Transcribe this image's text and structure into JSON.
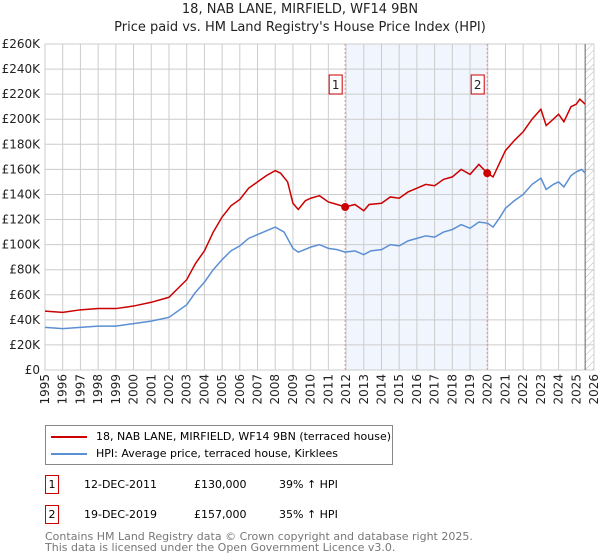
{
  "header": {
    "title": "18, NAB LANE, MIRFIELD, WF14 9BN",
    "subtitle": "Price paid vs. HM Land Registry's House Price Index (HPI)"
  },
  "chart_data": {
    "type": "line",
    "title": "18, NAB LANE, MIRFIELD, WF14 9BN",
    "subtitle": "Price paid vs. HM Land Registry's House Price Index (HPI)",
    "xlim": [
      1995,
      2026
    ],
    "ylim": [
      0,
      260000
    ],
    "x_ticks": [
      "1995",
      "1996",
      "1997",
      "1998",
      "1999",
      "2000",
      "2001",
      "2002",
      "2003",
      "2004",
      "2005",
      "2006",
      "2007",
      "2008",
      "2009",
      "2010",
      "2011",
      "2012",
      "2013",
      "2014",
      "2015",
      "2016",
      "2017",
      "2018",
      "2019",
      "2020",
      "2021",
      "2022",
      "2023",
      "2024",
      "2025",
      "2026"
    ],
    "y_ticks": [
      "£0",
      "£20K",
      "£40K",
      "£60K",
      "£80K",
      "£100K",
      "£120K",
      "£140K",
      "£160K",
      "£180K",
      "£200K",
      "£220K",
      "£240K",
      "£260K"
    ],
    "grid": true,
    "shaded_range": [
      2011.95,
      2019.97
    ],
    "forecast_hatch_from": 2025.5,
    "series": [
      {
        "name": "18, NAB LANE, MIRFIELD, WF14 9BN (terraced house)",
        "color": "#cc0000",
        "x": [
          1995,
          1996,
          1997,
          1998,
          1999,
          2000,
          2001,
          2002,
          2003,
          2003.5,
          2004,
          2004.5,
          2005,
          2005.5,
          2006,
          2006.5,
          2007,
          2007.5,
          2008,
          2008.3,
          2008.7,
          2009,
          2009.3,
          2009.7,
          2010,
          2010.5,
          2011,
          2011.5,
          2011.95,
          2012.5,
          2013,
          2013.3,
          2014,
          2014.5,
          2015,
          2015.5,
          2016,
          2016.5,
          2017,
          2017.5,
          2018,
          2018.5,
          2019,
          2019.5,
          2019.97,
          2020.3,
          2020.7,
          2021,
          2021.5,
          2022,
          2022.5,
          2023,
          2023.3,
          2023.7,
          2024,
          2024.3,
          2024.7,
          2025,
          2025.2,
          2025.5
        ],
        "y": [
          47000,
          46000,
          48000,
          49000,
          49000,
          51000,
          54000,
          58000,
          72000,
          85000,
          95000,
          110000,
          122000,
          131000,
          136000,
          145000,
          150000,
          155000,
          159000,
          157000,
          150000,
          133000,
          128000,
          135000,
          137000,
          139000,
          134000,
          132000,
          130000,
          132000,
          127000,
          132000,
          133000,
          138000,
          137000,
          142000,
          145000,
          148000,
          147000,
          152000,
          154000,
          160000,
          156000,
          164000,
          157000,
          154000,
          166000,
          175000,
          183000,
          190000,
          200000,
          208000,
          195000,
          200000,
          204000,
          198000,
          210000,
          212000,
          216000,
          212000
        ]
      },
      {
        "name": "HPI: Average price, terraced house, Kirklees",
        "color": "#5b8fd4",
        "x": [
          1995,
          1996,
          1997,
          1998,
          1999,
          2000,
          2001,
          2002,
          2003,
          2003.5,
          2004,
          2004.5,
          2005,
          2005.5,
          2006,
          2006.5,
          2007,
          2007.5,
          2008,
          2008.5,
          2009,
          2009.3,
          2010,
          2010.5,
          2011,
          2011.5,
          2011.95,
          2012.5,
          2013,
          2013.4,
          2014,
          2014.5,
          2015,
          2015.5,
          2016,
          2016.5,
          2017,
          2017.5,
          2018,
          2018.5,
          2019,
          2019.5,
          2020,
          2020.3,
          2020.7,
          2021,
          2021.5,
          2022,
          2022.5,
          2023,
          2023.3,
          2023.7,
          2024,
          2024.3,
          2024.7,
          2025,
          2025.3,
          2025.5
        ],
        "y": [
          34000,
          33000,
          34000,
          35000,
          35000,
          37000,
          39000,
          42000,
          52000,
          62000,
          70000,
          80000,
          88000,
          95000,
          99000,
          105000,
          108000,
          111000,
          114000,
          110000,
          97000,
          94000,
          98000,
          100000,
          97000,
          96000,
          94000,
          95000,
          92000,
          95000,
          96000,
          100000,
          99000,
          103000,
          105000,
          107000,
          106000,
          110000,
          112000,
          116000,
          113000,
          118000,
          117000,
          114000,
          122000,
          129000,
          135000,
          140000,
          148000,
          153000,
          144000,
          148000,
          150000,
          146000,
          155000,
          158000,
          160000,
          157000
        ]
      }
    ],
    "sales": [
      {
        "label": "1",
        "date": "12-DEC-2011",
        "x": 2011.95,
        "price": "£130,000",
        "value": 130000,
        "hpi": "39% ↑ HPI"
      },
      {
        "label": "2",
        "date": "19-DEC-2019",
        "x": 2019.97,
        "price": "£157,000",
        "value": 157000,
        "hpi": "35% ↑ HPI"
      }
    ]
  },
  "footer": {
    "line1": "Contains HM Land Registry data © Crown copyright and database right 2025.",
    "line2": "This data is licensed under the Open Government Licence v3.0."
  }
}
